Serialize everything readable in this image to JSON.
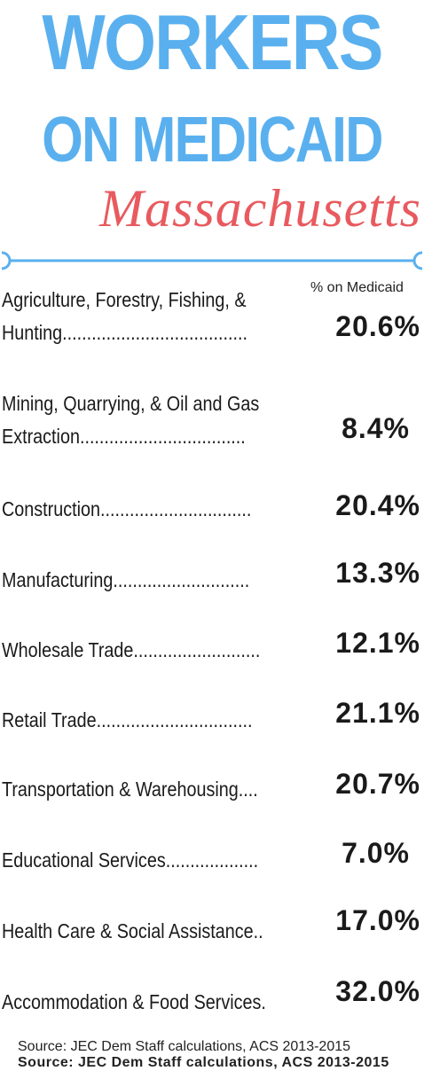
{
  "title": {
    "line1": "WORKERS",
    "line2": "ON MEDICAID",
    "state": "Massachusetts"
  },
  "column_header": "% on Medicaid",
  "rows": [
    {
      "label_line1": "Agriculture, Forestry, Fishing, &",
      "label_line2": "Hunting......................................",
      "value": "20.6%"
    },
    {
      "label_line1": "Mining, Quarrying, & Oil and Gas",
      "label_line2": "Extraction..................................",
      "value": "8.4%"
    },
    {
      "label_line1": "Construction...............................",
      "value": "20.4%"
    },
    {
      "label_line1": "Manufacturing............................",
      "value": "13.3%"
    },
    {
      "label_line1": "Wholesale Trade..........................",
      "value": "12.1%"
    },
    {
      "label_line1": "Retail Trade................................",
      "value": "21.1%"
    },
    {
      "label_line1": "Transportation & Warehousing....",
      "value": "20.7%"
    },
    {
      "label_line1": "Educational Services...................",
      "value": "7.0%"
    },
    {
      "label_line1": "Health Care & Social Assistance..",
      "value": "17.0%"
    },
    {
      "label_line1": "Accommodation & Food Services.",
      "value": "32.0%"
    }
  ],
  "source": "Source: JEC Dem Staff calculations, ACS 2013-2015",
  "source_overlap": "Source: JEC Dem Staff calculations, ACS 2013-2015",
  "colors": {
    "title_blue": "#5ab0ee",
    "state_red": "#e85a5f",
    "divider_blue": "#5ab0ee",
    "text": "#1a1a1a"
  }
}
